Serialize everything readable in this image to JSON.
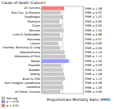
{
  "chart_data": {
    "type": "bar",
    "orientation": "horizontal",
    "title": "Cause of death (Cancer)",
    "x_label": "Proportionate Mortality Ratio (PMR)",
    "categories": [
      "All Cancers",
      "Oral Cav. & Pharynx",
      "Esophagus",
      "Stomach",
      "Colon",
      "Rectum",
      "Liver & Gallbladder",
      "Pancreas",
      "Larynx",
      "Trachea, Bronchus & Lung",
      "Mesothelioma",
      "Melanoma of Skin",
      "Breast",
      "Prostate",
      "Bladder",
      "Kidney",
      "Brain & CNS",
      "Non-Hodgkin Lymphoma",
      "Leukemia",
      "All Other Cancers"
    ],
    "series": [
      {
        "name": "Non-sig",
        "color": "#c8c8c8",
        "values": [
          null,
          0.92,
          1.02,
          0.85,
          0.95,
          1.05,
          0.88,
          0.97,
          0.8,
          0.9,
          1.1,
          1.15,
          null,
          0.93,
          1.0,
          1.06,
          1.12,
          0.96,
          1.03,
          0.9
        ],
        "value_labels": [
          null,
          "PMR = 0.92",
          "PMR = 1.02",
          "PMR = 0.85",
          "PMR = 0.95",
          "PMR = 1.05",
          "PMR = 0.88",
          "PMR = 0.97",
          "PMR = 0.80",
          "PMR = 0.90",
          "PMR = 1.10",
          "PMR = 1.15",
          null,
          "PMR = 0.93",
          "PMR = 1.00",
          "PMR = 1.06",
          "PMR = 1.12",
          "PMR = 0.96",
          "PMR = 1.03",
          "PMR = 0.90"
        ]
      },
      {
        "name": "p < 0.05",
        "color": "#9999ff",
        "values": [
          null,
          null,
          null,
          null,
          null,
          null,
          null,
          null,
          null,
          null,
          null,
          null,
          1.3,
          null,
          null,
          null,
          null,
          null,
          null,
          null
        ],
        "value_labels": [
          null,
          null,
          null,
          null,
          null,
          null,
          null,
          null,
          null,
          null,
          null,
          null,
          "PMR = 1.30",
          null,
          null,
          null,
          null,
          null,
          null,
          null
        ]
      },
      {
        "name": "p < 0.01",
        "color": "#f08080",
        "values": [
          1.08,
          null,
          null,
          null,
          null,
          null,
          null,
          null,
          null,
          null,
          null,
          null,
          null,
          null,
          null,
          null,
          null,
          null,
          null,
          null
        ],
        "value_labels": [
          "PMR = 1.08",
          null,
          null,
          null,
          null,
          null,
          null,
          null,
          null,
          null,
          null,
          null,
          null,
          null,
          null,
          null,
          null,
          null,
          null,
          null
        ]
      }
    ],
    "xlim": [
      0,
      2
    ],
    "xticks": [
      0,
      1,
      2
    ],
    "grid": true,
    "tick_labels": "y",
    "legend": "lower left"
  }
}
